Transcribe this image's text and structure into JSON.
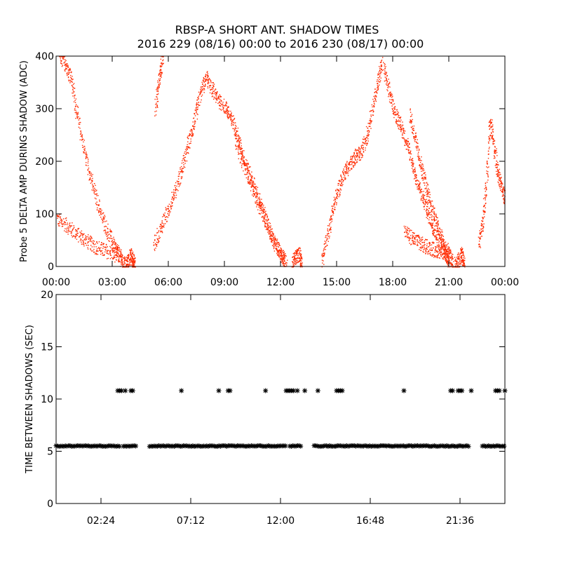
{
  "title_line1": "RBSP-A SHORT ANT. SHADOW TIMES",
  "title_line2": "2016 229 (08/16) 00:00 to 2016 230 (08/17) 00:00",
  "colors": {
    "top_series": "#ff2a00",
    "bottom_series": "#000000",
    "axis": "#000000"
  },
  "chart_data": [
    {
      "type": "scatter",
      "panel": "top",
      "ylabel": "Probe 5 DELTA AMP DURING SHADOW (ADC)",
      "xlabel": "",
      "xlim_hours": [
        0,
        24
      ],
      "ylim": [
        0,
        400
      ],
      "x_ticks": [
        {
          "h": 0,
          "label": "00:00"
        },
        {
          "h": 3,
          "label": "03:00"
        },
        {
          "h": 6,
          "label": "06:00"
        },
        {
          "h": 9,
          "label": "09:00"
        },
        {
          "h": 12,
          "label": "12:00"
        },
        {
          "h": 15,
          "label": "15:00"
        },
        {
          "h": 18,
          "label": "18:00"
        },
        {
          "h": 21,
          "label": "21:00"
        },
        {
          "h": 24,
          "label": "00:00"
        }
      ],
      "y_ticks": [
        {
          "v": 0,
          "label": "0"
        },
        {
          "v": 100,
          "label": "100"
        },
        {
          "v": 200,
          "label": "200"
        },
        {
          "v": 300,
          "label": "300"
        },
        {
          "v": 400,
          "label": "400"
        }
      ],
      "series": [
        {
          "name": "branch-1a",
          "points": [
            [
              0.0,
              92
            ],
            [
              0.5,
              80
            ],
            [
              1.0,
              65
            ],
            [
              1.5,
              52
            ],
            [
              2.0,
              40
            ],
            [
              2.5,
              32
            ],
            [
              3.0,
              26
            ],
            [
              3.3,
              20
            ]
          ]
        },
        {
          "name": "branch-1b",
          "points": [
            [
              0.2,
              400
            ],
            [
              0.5,
              385
            ],
            [
              0.8,
              360
            ],
            [
              1.1,
              290
            ],
            [
              1.5,
              220
            ],
            [
              1.9,
              160
            ],
            [
              2.3,
              110
            ],
            [
              2.7,
              70
            ],
            [
              3.1,
              40
            ],
            [
              3.4,
              20
            ],
            [
              3.6,
              5
            ]
          ]
        },
        {
          "name": "valley-1",
          "points": [
            [
              3.6,
              3
            ],
            [
              3.8,
              10
            ],
            [
              4.0,
              22
            ],
            [
              4.1,
              10
            ],
            [
              4.2,
              2
            ]
          ]
        },
        {
          "name": "rise-2",
          "points": [
            [
              5.2,
              40
            ],
            [
              5.6,
              75
            ],
            [
              6.0,
              110
            ],
            [
              6.4,
              150
            ],
            [
              6.8,
              195
            ],
            [
              7.1,
              240
            ],
            [
              7.4,
              280
            ],
            [
              7.7,
              330
            ],
            [
              8.0,
              360
            ],
            [
              8.3,
              340
            ],
            [
              8.6,
              320
            ],
            [
              9.0,
              305
            ],
            [
              9.3,
              285
            ],
            [
              9.6,
              260
            ],
            [
              9.9,
              220
            ],
            [
              10.3,
              180
            ],
            [
              10.7,
              140
            ],
            [
              11.1,
              100
            ],
            [
              11.5,
              60
            ],
            [
              11.9,
              30
            ],
            [
              12.2,
              10
            ]
          ]
        },
        {
          "name": "spike-2",
          "points": [
            [
              5.3,
              300
            ],
            [
              5.5,
              360
            ],
            [
              5.7,
              400
            ]
          ]
        },
        {
          "name": "branch-2b",
          "points": [
            [
              9.6,
              240
            ],
            [
              10.0,
              195
            ],
            [
              10.4,
              160
            ],
            [
              10.8,
              120
            ],
            [
              11.2,
              85
            ],
            [
              11.6,
              50
            ],
            [
              12.0,
              25
            ],
            [
              12.3,
              8
            ]
          ]
        },
        {
          "name": "valley-2",
          "points": [
            [
              12.6,
              5
            ],
            [
              12.8,
              18
            ],
            [
              13.0,
              25
            ],
            [
              13.1,
              8
            ]
          ]
        },
        {
          "name": "rise-3",
          "points": [
            [
              14.2,
              10
            ],
            [
              14.5,
              60
            ],
            [
              14.8,
              110
            ],
            [
              15.1,
              150
            ],
            [
              15.4,
              180
            ],
            [
              15.7,
              195
            ],
            [
              16.0,
              210
            ],
            [
              16.3,
              215
            ],
            [
              16.6,
              250
            ],
            [
              16.9,
              300
            ],
            [
              17.2,
              350
            ],
            [
              17.4,
              390
            ]
          ]
        },
        {
          "name": "fall-3",
          "points": [
            [
              17.5,
              380
            ],
            [
              17.8,
              330
            ],
            [
              18.1,
              295
            ],
            [
              18.4,
              270
            ],
            [
              18.7,
              240
            ],
            [
              19.0,
              200
            ],
            [
              19.3,
              160
            ],
            [
              19.6,
              130
            ],
            [
              19.9,
              100
            ],
            [
              20.2,
              70
            ],
            [
              20.5,
              45
            ],
            [
              20.8,
              25
            ],
            [
              21.0,
              10
            ]
          ]
        },
        {
          "name": "branch-3b",
          "points": [
            [
              18.9,
              290
            ],
            [
              19.2,
              240
            ],
            [
              19.5,
              190
            ],
            [
              19.8,
              150
            ],
            [
              20.1,
              110
            ],
            [
              20.4,
              75
            ],
            [
              20.7,
              45
            ],
            [
              21.0,
              22
            ],
            [
              21.2,
              8
            ]
          ]
        },
        {
          "name": "lower-3",
          "points": [
            [
              18.6,
              70
            ],
            [
              19.0,
              55
            ],
            [
              19.4,
              45
            ],
            [
              19.8,
              38
            ],
            [
              20.2,
              32
            ],
            [
              20.6,
              28
            ],
            [
              21.0,
              22
            ]
          ]
        },
        {
          "name": "valley-3",
          "points": [
            [
              21.3,
              3
            ],
            [
              21.5,
              12
            ],
            [
              21.7,
              24
            ],
            [
              21.8,
              6
            ]
          ]
        },
        {
          "name": "rise-4",
          "points": [
            [
              22.6,
              40
            ],
            [
              22.8,
              90
            ],
            [
              23.0,
              160
            ],
            [
              23.2,
              280
            ],
            [
              23.4,
              230
            ],
            [
              23.6,
              180
            ],
            [
              23.8,
              150
            ],
            [
              24.0,
              130
            ]
          ]
        }
      ]
    },
    {
      "type": "scatter",
      "panel": "bottom",
      "ylabel": "TIME BETWEEN SHADOWS (SEC)",
      "xlabel": "",
      "xlim_hours": [
        0,
        24
      ],
      "ylim": [
        0,
        20
      ],
      "marker": "*",
      "x_ticks": [
        {
          "h": 2.4,
          "label": "02:24"
        },
        {
          "h": 7.2,
          "label": "07:12"
        },
        {
          "h": 12.0,
          "label": "12:00"
        },
        {
          "h": 16.8,
          "label": "16:48"
        },
        {
          "h": 21.6,
          "label": "21:36"
        }
      ],
      "y_ticks": [
        {
          "v": 0,
          "label": "0"
        },
        {
          "v": 5,
          "label": "5"
        },
        {
          "v": 10,
          "label": "10"
        },
        {
          "v": 15,
          "label": "15"
        },
        {
          "v": 20,
          "label": "20"
        }
      ],
      "baseline_value": 5.5,
      "baseline_ranges_hours": [
        [
          0.0,
          3.4
        ],
        [
          3.6,
          4.3
        ],
        [
          5.0,
          12.3
        ],
        [
          12.5,
          13.1
        ],
        [
          13.8,
          22.1
        ],
        [
          22.8,
          24.0
        ]
      ],
      "upper_value": 10.8,
      "upper_points_hours": [
        3.3,
        3.4,
        3.5,
        3.7,
        4.0,
        4.1,
        6.7,
        8.7,
        9.2,
        9.3,
        11.2,
        12.3,
        12.4,
        12.5,
        12.6,
        12.7,
        12.9,
        13.3,
        14.0,
        15.0,
        15.1,
        15.2,
        15.3,
        18.6,
        21.1,
        21.2,
        21.5,
        21.6,
        21.7,
        22.2,
        23.5,
        23.6,
        23.7,
        24.0
      ]
    }
  ]
}
